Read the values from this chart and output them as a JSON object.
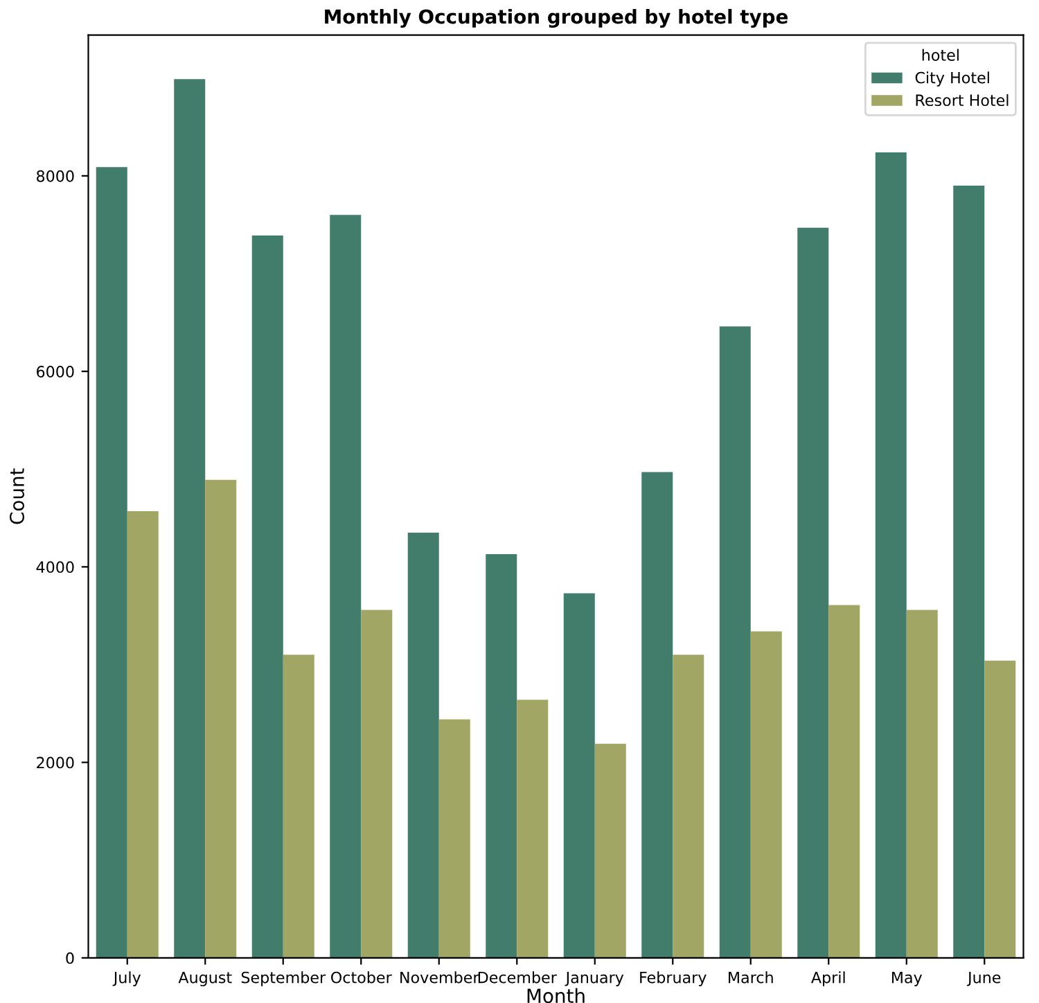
{
  "chart_data": {
    "type": "bar",
    "title": "Monthly Occupation grouped by hotel type",
    "xlabel": "Month",
    "ylabel": "Count",
    "legend_title": "hotel",
    "legend": "top right",
    "grid": false,
    "categories": [
      "July",
      "August",
      "September",
      "October",
      "November",
      "December",
      "January",
      "February",
      "March",
      "April",
      "May",
      "June"
    ],
    "series": [
      {
        "name": "City Hotel",
        "color": "#417d6a",
        "values": [
          8090,
          8990,
          7390,
          7600,
          4350,
          4130,
          3730,
          4970,
          6460,
          7470,
          8240,
          7900
        ]
      },
      {
        "name": "Resort Hotel",
        "color": "#a1a665",
        "values": [
          4570,
          4890,
          3100,
          3560,
          2440,
          2640,
          2190,
          3100,
          3340,
          3610,
          3560,
          3040
        ]
      }
    ],
    "ylim": [
      0,
      9440
    ],
    "yticks": [
      0,
      2000,
      4000,
      6000,
      8000
    ]
  }
}
